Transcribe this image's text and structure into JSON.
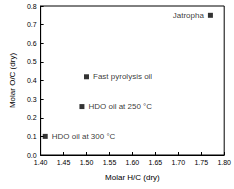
{
  "chart_data": {
    "type": "scatter",
    "x_label": "Molar H/C (dry)",
    "y_label": "Molar O/C (dry)",
    "x": [
      1.77,
      1.5,
      1.49,
      1.41
    ],
    "values": [
      0.75,
      0.42,
      0.26,
      0.1
    ],
    "annotations": [
      "Jatropha",
      "Fast pyrolysis oil",
      "HDO oil at 250 °C",
      "HDO oil at 300 °C"
    ],
    "color": "#000000",
    "marker": "square",
    "xlim": [
      1.4,
      1.8
    ],
    "xticks": [
      {
        "value": 1.4,
        "label": "1.40"
      },
      {
        "value": 1.45,
        "label": "1.45"
      },
      {
        "value": 1.5,
        "label": "1.50"
      },
      {
        "value": 1.55,
        "label": "1.55"
      },
      {
        "value": 1.6,
        "label": "1.60"
      },
      {
        "value": 1.65,
        "label": "1.65"
      },
      {
        "value": 1.7,
        "label": "1.70"
      },
      {
        "value": 1.75,
        "label": "1.75"
      },
      {
        "value": 1.8,
        "label": "1.80"
      }
    ],
    "ylim": [
      0,
      0.8
    ],
    "yticks": [
      {
        "value": 0,
        "label": "0.0"
      },
      {
        "value": 0.1,
        "label": "0.1"
      },
      {
        "value": 0.2,
        "label": "0.2"
      },
      {
        "value": 0.3,
        "label": "0.3"
      },
      {
        "value": 0.4,
        "label": "0.4"
      },
      {
        "value": 0.5,
        "label": "0.5"
      },
      {
        "value": 0.6,
        "label": "0.6"
      },
      {
        "value": 0.7,
        "label": "0.7"
      },
      {
        "value": 0.8,
        "label": "0.8"
      }
    ],
    "grid": false
  }
}
